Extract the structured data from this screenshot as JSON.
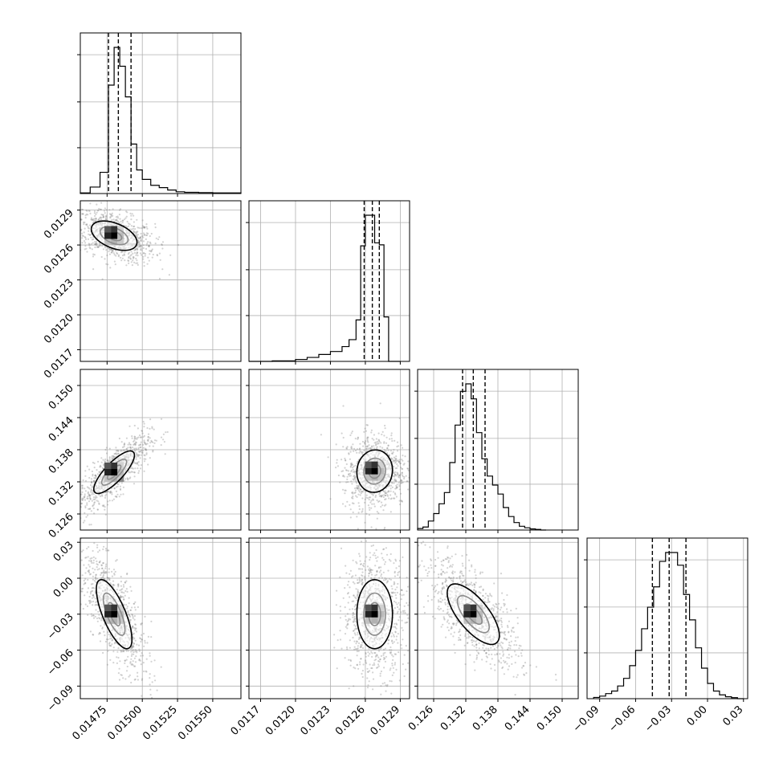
{
  "chart_data": {
    "type": "scatter",
    "subtype": "corner-plot",
    "params": [
      {
        "ticks": [
          0.01475,
          0.015,
          0.01525,
          0.0155
        ],
        "labels": [
          "0.01475",
          "0.01500",
          "0.01525",
          "0.01550"
        ],
        "lim": [
          0.01456,
          0.0157
        ]
      },
      {
        "ticks": [
          0.0117,
          0.012,
          0.0123,
          0.0126,
          0.0129
        ],
        "labels": [
          "0.0117",
          "0.0120",
          "0.0123",
          "0.0126",
          "0.0129"
        ],
        "lim": [
          0.0116,
          0.01298
        ]
      },
      {
        "ticks": [
          0.126,
          0.132,
          0.138,
          0.144,
          0.15
        ],
        "labels": [
          "0.126",
          "0.132",
          "0.138",
          "0.144",
          "0.150"
        ],
        "lim": [
          0.123,
          0.153
        ]
      },
      {
        "ticks": [
          -0.09,
          -0.06,
          -0.03,
          0.0,
          0.03
        ],
        "labels": [
          "−0.09",
          "−0.06",
          "−0.03",
          "0.00",
          "0.03"
        ],
        "lim": [
          -0.1005,
          0.0335
        ]
      }
    ],
    "histograms": [
      {
        "quantiles": [
          0.01476,
          0.01483,
          0.01492
        ],
        "edges": [
          0.01456,
          0.01463,
          0.0147,
          0.01476,
          0.0148,
          0.01484,
          0.01488,
          0.01492,
          0.01496,
          0.015,
          0.01506,
          0.01512,
          0.01518,
          0.01524,
          0.0153,
          0.0154,
          0.0155,
          0.0157
        ],
        "counts": [
          0.005,
          0.055,
          0.18,
          0.92,
          1.24,
          1.08,
          0.82,
          0.42,
          0.2,
          0.12,
          0.07,
          0.05,
          0.03,
          0.015,
          0.01,
          0.008,
          0.005
        ]
      },
      {
        "quantiles": [
          0.01259,
          0.01266,
          0.01272
        ],
        "edges": [
          0.0116,
          0.0118,
          0.012,
          0.0121,
          0.0122,
          0.0123,
          0.0124,
          0.01246,
          0.01252,
          0.01256,
          0.0126,
          0.01264,
          0.01268,
          0.01272,
          0.01276,
          0.0128,
          0.0129
        ],
        "counts": [
          0.0,
          0.005,
          0.02,
          0.04,
          0.07,
          0.1,
          0.15,
          0.22,
          0.42,
          1.17,
          1.48,
          1.48,
          1.2,
          1.18,
          0.45,
          0.0
        ]
      },
      {
        "quantiles": [
          0.1314,
          0.1334,
          0.1356
        ],
        "edges": [
          0.123,
          0.124,
          0.125,
          0.126,
          0.127,
          0.128,
          0.129,
          0.13,
          0.131,
          0.132,
          0.133,
          0.134,
          0.135,
          0.136,
          0.137,
          0.138,
          0.139,
          0.14,
          0.141,
          0.142,
          0.143,
          0.144,
          0.145,
          0.146,
          0.147
        ],
        "counts": [
          0.02,
          0.04,
          0.12,
          0.22,
          0.35,
          0.5,
          0.9,
          1.4,
          1.85,
          1.95,
          1.75,
          1.3,
          0.95,
          0.72,
          0.6,
          0.48,
          0.3,
          0.18,
          0.1,
          0.05,
          0.03,
          0.015,
          0.008,
          0.0
        ]
      },
      {
        "quantiles": [
          -0.046,
          -0.032,
          -0.018
        ],
        "edges": [
          -0.095,
          -0.09,
          -0.085,
          -0.08,
          -0.075,
          -0.07,
          -0.065,
          -0.06,
          -0.055,
          -0.05,
          -0.045,
          -0.04,
          -0.035,
          -0.03,
          -0.025,
          -0.02,
          -0.015,
          -0.01,
          -0.005,
          0.0,
          0.005,
          0.01,
          0.015,
          0.02,
          0.025,
          0.03
        ],
        "counts": [
          0.01,
          0.02,
          0.04,
          0.06,
          0.1,
          0.16,
          0.26,
          0.38,
          0.55,
          0.72,
          0.88,
          1.08,
          1.15,
          1.15,
          1.05,
          0.82,
          0.62,
          0.4,
          0.24,
          0.12,
          0.06,
          0.03,
          0.015,
          0.008,
          0.0
        ]
      }
    ],
    "pairs": [
      {
        "row": 1,
        "col": 0,
        "center": [
          0.0148,
          0.01268
        ],
        "sigma": [
          9e-05,
          7e-05
        ],
        "rho": -0.45
      },
      {
        "row": 2,
        "col": 0,
        "center": [
          0.0148,
          0.1338
        ],
        "sigma": [
          8e-05,
          0.0022
        ],
        "rho": 0.8
      },
      {
        "row": 2,
        "col": 1,
        "center": [
          0.01268,
          0.134
        ],
        "sigma": [
          8.5e-05,
          0.0022
        ],
        "rho": 0.05
      },
      {
        "row": 3,
        "col": 0,
        "center": [
          0.0148,
          -0.03
        ],
        "sigma": [
          7e-05,
          0.016
        ],
        "rho": -0.72
      },
      {
        "row": 3,
        "col": 1,
        "center": [
          0.01268,
          -0.03
        ],
        "sigma": [
          8.5e-05,
          0.016
        ],
        "rho": 0.0
      },
      {
        "row": 3,
        "col": 2,
        "center": [
          0.1334,
          -0.03
        ],
        "sigma": [
          0.0027,
          0.014
        ],
        "rho": -0.7
      }
    ],
    "grid": true,
    "legend": "none",
    "title": "",
    "colors": {
      "points": "#808080",
      "lines": "#000000",
      "grid": "#b0b0b0"
    }
  }
}
